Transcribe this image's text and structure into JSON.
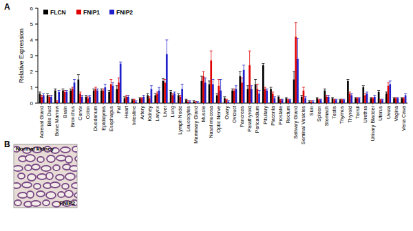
{
  "chart_data": {
    "type": "bar",
    "y_label": "Relative Expression",
    "categories": [
      "Adrenal Gland",
      "Bile Duct",
      "Bone Marrow",
      "Brain",
      "Bronchus",
      "Cervix",
      "Colon",
      "Duodenum",
      "Epididymis",
      "Esophagus",
      "Fat",
      "Heart",
      "Intestine",
      "Artery",
      "Kidney",
      "Larynx",
      "Liver",
      "Lung",
      "Lymph Node",
      "Leucocytes",
      "Mammary Gland",
      "Muscle",
      "Nasal mucosa",
      "Optic Nerve",
      "Ovary",
      "Oviduct",
      "Pancreas",
      "Parathyroid",
      "Pericardium",
      "Pituitary",
      "Placenta",
      "Prostate",
      "Rectum",
      "Salivary Gland",
      "Seminal Vesicles",
      "Skin",
      "Spleen",
      "Stomach",
      "Testis",
      "Thymus",
      "Thyroid",
      "Tonsil",
      "Urethra",
      "Urinary Bladder",
      "Uterus",
      "Uvula",
      "Vagina",
      "Vena Cava"
    ],
    "series": [
      {
        "name": "FLCN",
        "color": "#000000",
        "values": [
          0.6,
          0.5,
          0.8,
          0.8,
          0.8,
          1.5,
          0.4,
          0.8,
          0.8,
          0.7,
          0.9,
          0.3,
          0.2,
          0.3,
          0.5,
          0.5,
          1.4,
          0.7,
          0.5,
          0.2,
          0.1,
          1.4,
          1.2,
          0.5,
          0.3,
          0.8,
          1.7,
          0.9,
          1.2,
          2.4,
          0.9,
          0.4,
          0.3,
          1.5,
          0.4,
          0.1,
          0.3,
          0.8,
          0.3,
          0.2,
          1.4,
          0.3,
          1.0,
          0.3,
          0.7,
          0.6,
          0.3,
          0.3
        ],
        "errors": [
          0.1,
          0.1,
          0.1,
          0.1,
          0.1,
          0.3,
          0.1,
          0.1,
          0.1,
          0.1,
          0.2,
          0.1,
          0.05,
          0.05,
          0.1,
          0.1,
          0.15,
          0.1,
          0.1,
          0.05,
          0.05,
          0.3,
          0.2,
          0.1,
          0.1,
          0.1,
          0.3,
          0.2,
          0.3,
          0.1,
          0.1,
          0.05,
          0.05,
          0.5,
          0.1,
          0.05,
          0.05,
          0.1,
          0.05,
          0.05,
          0.1,
          0.05,
          0.1,
          0.05,
          0.1,
          0.1,
          0.05,
          0.05
        ]
      },
      {
        "name": "FNIP1",
        "color": "#e00000",
        "values": [
          0.4,
          0.4,
          0.1,
          0.7,
          0.9,
          0.6,
          0.3,
          0.9,
          0.8,
          1.2,
          1.3,
          0.4,
          0.2,
          0.3,
          0.3,
          0.6,
          1.3,
          0.5,
          0.4,
          0.1,
          0.05,
          1.7,
          2.7,
          1.1,
          0.2,
          0.8,
          1.3,
          2.4,
          0.9,
          0.9,
          0.6,
          0.2,
          0.2,
          4.2,
          0.8,
          0.1,
          0.2,
          0.4,
          0.2,
          0.2,
          0.6,
          0.3,
          0.5,
          0.3,
          0.2,
          1.1,
          0.3,
          0.3
        ],
        "errors": [
          0.1,
          0.1,
          0.05,
          0.1,
          0.1,
          0.1,
          0.1,
          0.1,
          0.1,
          0.3,
          0.3,
          0.1,
          0.05,
          0.05,
          0.1,
          0.1,
          0.2,
          0.1,
          0.1,
          0.05,
          0.05,
          0.3,
          0.6,
          0.4,
          0.05,
          0.1,
          0.3,
          0.9,
          0.3,
          0.1,
          0.1,
          0.05,
          0.05,
          0.9,
          0.2,
          0.05,
          0.05,
          0.1,
          0.05,
          0.05,
          0.1,
          0.05,
          0.1,
          0.05,
          0.05,
          0.2,
          0.05,
          0.05
        ]
      },
      {
        "name": "FNIP2",
        "color": "#1f1fcc",
        "values": [
          0.5,
          0.4,
          0.7,
          0.7,
          1.3,
          0.4,
          0.4,
          0.8,
          1.0,
          1.1,
          2.5,
          0.4,
          0.1,
          0.4,
          0.9,
          0.8,
          3.1,
          0.6,
          0.9,
          0.1,
          0.05,
          1.3,
          1.2,
          0.8,
          0.1,
          0.9,
          2.1,
          0.9,
          0.6,
          0.8,
          0.3,
          0.2,
          0.2,
          2.8,
          0.3,
          0.1,
          0.2,
          0.4,
          0.2,
          0.2,
          0.5,
          0.3,
          0.6,
          0.4,
          0.2,
          1.2,
          0.3,
          0.5
        ],
        "errors": [
          0.1,
          0.1,
          0.1,
          0.1,
          0.2,
          0.1,
          0.1,
          0.1,
          0.2,
          0.2,
          0.1,
          0.1,
          0.05,
          0.1,
          0.2,
          0.2,
          0.9,
          0.1,
          0.3,
          0.05,
          0.05,
          0.3,
          0.3,
          0.7,
          0.05,
          0.2,
          0.3,
          0.2,
          0.2,
          0.1,
          0.1,
          0.05,
          0.05,
          1.3,
          0.1,
          0.05,
          0.05,
          0.1,
          0.05,
          0.05,
          0.1,
          0.05,
          0.1,
          0.1,
          0.05,
          0.2,
          0.05,
          0.1
        ]
      }
    ],
    "ylim": [
      0,
      6
    ],
    "yticks": [
      0,
      1,
      2,
      3,
      4,
      5,
      6
    ],
    "grid": false,
    "legend": "top-left"
  },
  "panel_labels": [
    "A",
    "B"
  ],
  "image": {
    "title": "Normal kidney",
    "label": "FNIP2"
  }
}
